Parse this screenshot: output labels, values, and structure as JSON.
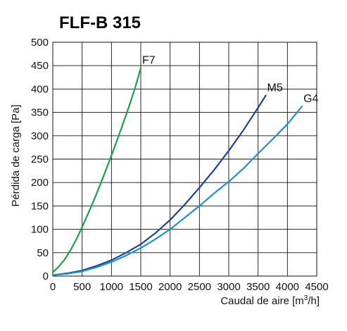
{
  "chart_data": {
    "type": "line",
    "title": "FLF-B 315",
    "xlabel": "Caudal de aire [m³/h]",
    "xlabel_parts": [
      "Caudal de aire [m",
      "3",
      "/h]"
    ],
    "ylabel": "Pérdida de carga [Pa]",
    "xlim": [
      0,
      4500
    ],
    "ylim": [
      0,
      500
    ],
    "x_ticks": [
      0,
      500,
      1000,
      1500,
      2000,
      2500,
      3000,
      3500,
      4000,
      4500
    ],
    "y_ticks": [
      0,
      50,
      100,
      150,
      200,
      250,
      300,
      350,
      400,
      450,
      500
    ],
    "x_tick_labels": [
      "0",
      "500",
      "1000",
      "1500",
      "2000",
      "2500",
      "3000",
      "3500",
      "4000",
      "4500"
    ],
    "y_tick_labels": [
      "0",
      "50",
      "100",
      "150",
      "200",
      "250",
      "300",
      "350",
      "400",
      "450",
      "500"
    ],
    "grid": true,
    "legend": "none",
    "series": [
      {
        "name": "F7",
        "color": "#1fa04a",
        "x": [
          0,
          100,
          200,
          300,
          400,
          500,
          600,
          700,
          800,
          900,
          1000,
          1100,
          1200,
          1300,
          1400,
          1500
        ],
        "y": [
          8,
          20,
          35,
          55,
          78,
          105,
          133,
          162,
          193,
          225,
          258,
          292,
          327,
          363,
          401,
          445
        ]
      },
      {
        "name": "M5",
        "color": "#1a449a",
        "x": [
          0,
          250,
          500,
          750,
          1000,
          1250,
          1500,
          1750,
          2000,
          2250,
          2500,
          2750,
          3000,
          3250,
          3500,
          3630
        ],
        "y": [
          2,
          6,
          12,
          22,
          34,
          50,
          68,
          92,
          120,
          153,
          189,
          227,
          268,
          312,
          360,
          386
        ]
      },
      {
        "name": "G4",
        "color": "#1e8fd0",
        "x": [
          0,
          250,
          500,
          750,
          1000,
          1250,
          1500,
          1750,
          2000,
          2250,
          2500,
          2750,
          3000,
          3250,
          3500,
          3750,
          4000,
          4250
        ],
        "y": [
          2,
          5,
          10,
          19,
          30,
          44,
          60,
          79,
          100,
          125,
          150,
          177,
          202,
          230,
          262,
          293,
          325,
          363
        ]
      }
    ]
  }
}
